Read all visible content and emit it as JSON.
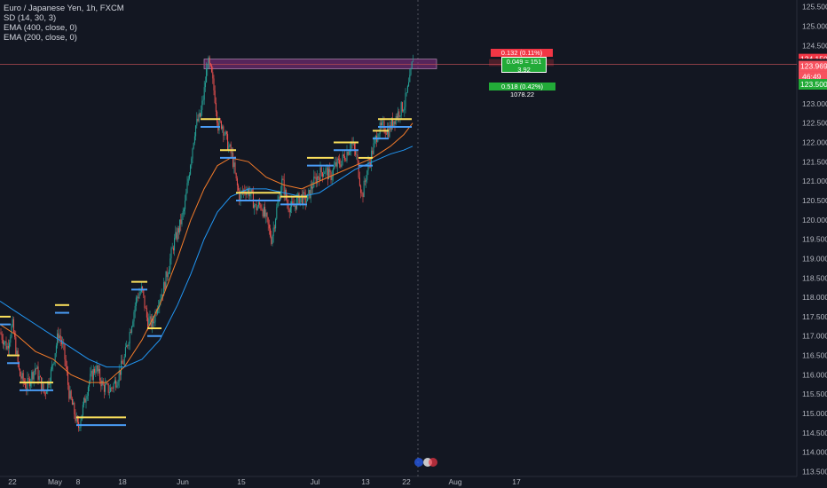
{
  "legend": {
    "symbol": "Euro / Japanese Yen, 1h, FXCM",
    "sd": "SD (14, 30, 3)",
    "ema400": "EMA (400, close, 0)",
    "ema200": "EMA (200, close, 0)"
  },
  "price_scale": {
    "current_price": "124.018",
    "target_price": "124.150",
    "entry_price": "123.969",
    "countdown": "46:49",
    "stop_price": "123.500"
  },
  "position_tool": {
    "target_label": "0.132 (0.11%) 980.07",
    "center_label_1": "0.049 ≈ 151",
    "center_label_2": "3.92",
    "stop_label": "0.518 (0.42%) 1078.22"
  },
  "colors": {
    "background": "#131722",
    "up": "#26a69a",
    "down": "#ef5350",
    "ema400": "#f57c2a",
    "ema200": "#2196f3",
    "zone": "#7b2d7b",
    "yellow_level": "#fbe05c",
    "blue_level": "#4a9cf6"
  },
  "chart_data": {
    "type": "candlestick",
    "title": "Euro / Japanese Yen, 1h, FXCM",
    "ylim": [
      113.3,
      125.6
    ],
    "y_ticks": [
      125.5,
      125.0,
      124.5,
      124.0,
      123.5,
      123.0,
      122.5,
      122.0,
      121.5,
      121.0,
      120.5,
      120.0,
      119.5,
      119.0,
      118.5,
      118.0,
      117.5,
      117.0,
      116.5,
      116.0,
      115.5,
      115.0,
      114.5,
      114.0,
      113.5
    ],
    "y_tick_labels": [
      "125.500",
      "125.000",
      "124.500",
      "124.000",
      "123.500",
      "123.000",
      "122.500",
      "122.000",
      "121.500",
      "121.000",
      "120.500",
      "120.000",
      "119.500",
      "119.000",
      "118.500",
      "118.000",
      "117.500",
      "117.000",
      "116.500",
      "116.000",
      "115.500",
      "115.000",
      "114.500",
      "114.000",
      "113.500"
    ],
    "x_labels": [
      "22",
      "May",
      "8",
      "18",
      "Jun",
      "15",
      "Jul",
      "13",
      "22",
      "Aug",
      "17"
    ],
    "price_path": [
      [
        "22",
        117.1
      ],
      [
        "May",
        116.0
      ],
      [
        "8",
        114.8
      ],
      [
        "18",
        115.8
      ],
      [
        "Jun",
        124.1
      ],
      [
        "15",
        120.6
      ],
      [
        "Jul",
        120.9
      ],
      [
        "13",
        121.2
      ],
      [
        "22",
        124.2
      ]
    ],
    "ema400": [
      [
        "22",
        117.6
      ],
      [
        "May",
        116.7
      ],
      [
        "8",
        116.0
      ],
      [
        "18",
        116.0
      ],
      [
        "Jun",
        119.8
      ],
      [
        "15",
        121.0
      ],
      [
        "Jul",
        121.1
      ],
      [
        "13",
        121.5
      ],
      [
        "22",
        122.5
      ]
    ],
    "ema200": [
      [
        "22",
        117.2
      ],
      [
        "May",
        116.2
      ],
      [
        "8",
        115.6
      ],
      [
        "18",
        115.9
      ],
      [
        "Jun",
        120.8
      ],
      [
        "15",
        121.2
      ],
      [
        "Jul",
        121.0
      ],
      [
        "13",
        121.6
      ],
      [
        "22",
        122.6
      ]
    ],
    "resistance_zone": [
      123.9,
      124.15
    ],
    "current_price": 124.018,
    "grid": false
  }
}
